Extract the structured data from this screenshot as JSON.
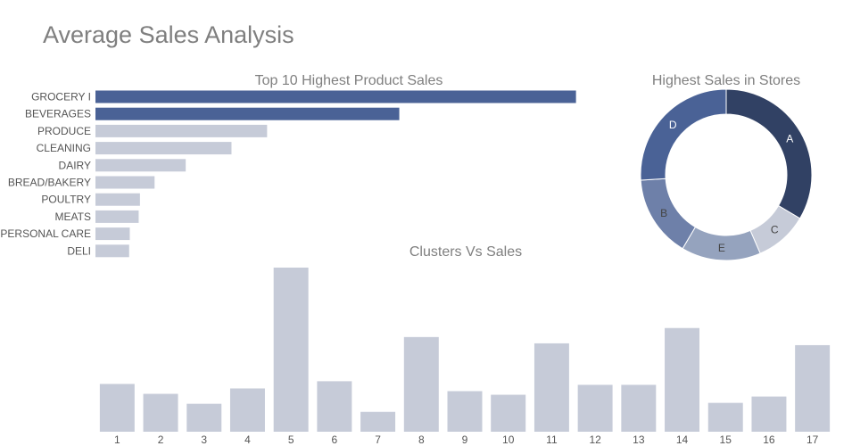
{
  "page": {
    "title": "Average Sales Analysis"
  },
  "chart_data": [
    {
      "type": "bar",
      "orientation": "horizontal",
      "title": "Top 10 Highest Product Sales",
      "categories": [
        "GROCERY I",
        "BEVERAGES",
        "PRODUCE",
        "CLEANING",
        "DAIRY",
        "BREAD/BAKERY",
        "POULTRY",
        "MEATS",
        "PERSONAL CARE",
        "DELI"
      ],
      "values": [
        3780,
        2390,
        1350,
        1070,
        710,
        465,
        350,
        340,
        270,
        265
      ],
      "highlight_count": 2,
      "colors": {
        "highlight": "#4a6296",
        "default": "#c6cbd8"
      },
      "xaxis_visible": false
    },
    {
      "type": "pie",
      "hole": true,
      "title": "Highest Sales in Stores",
      "labels": [
        "A",
        "C",
        "E",
        "B",
        "D"
      ],
      "values": [
        33.5,
        10,
        15,
        15.5,
        26
      ],
      "colors": [
        "#314164",
        "#c6cbd8",
        "#95a3be",
        "#6e80a9",
        "#4a6296"
      ],
      "label_colors": [
        "#ffffff",
        "#444444",
        "#444444",
        "#444444",
        "#ffffff"
      ]
    },
    {
      "type": "bar",
      "title": "Clusters Vs Sales",
      "categories": [
        "1",
        "2",
        "3",
        "4",
        "5",
        "6",
        "7",
        "8",
        "9",
        "10",
        "11",
        "12",
        "13",
        "14",
        "15",
        "16",
        "17"
      ],
      "values": [
        53,
        42,
        31,
        48,
        182,
        56,
        22,
        105,
        45,
        41,
        98,
        52,
        52,
        115,
        32,
        39,
        96
      ],
      "colors": {
        "default": "#c6cbd8"
      },
      "yaxis_visible": false
    }
  ]
}
